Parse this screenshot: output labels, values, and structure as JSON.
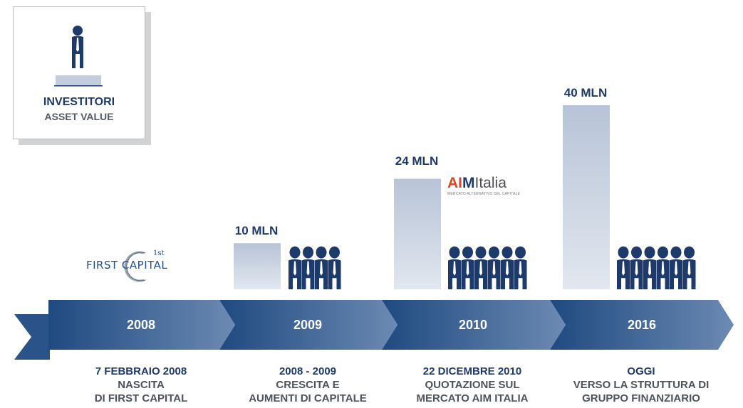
{
  "legend": {
    "title": "INVESTITORI",
    "subtitle": "ASSET VALUE",
    "icon": "investor-person-icon"
  },
  "chart_data": {
    "type": "bar",
    "categories": [
      "2008",
      "2009",
      "2010",
      "2016"
    ],
    "values": [
      0,
      10,
      24,
      40
    ],
    "value_labels": [
      "",
      "10 MLN",
      "24 MLN",
      "40 MLN"
    ],
    "investor_icons": [
      0,
      4,
      6,
      6
    ],
    "title": "",
    "xlabel": "",
    "ylabel": "",
    "ylim": [
      0,
      40
    ],
    "grid": false
  },
  "timeline": [
    {
      "year": "2008",
      "date": "7 FEBBRAIO 2008",
      "lines": [
        "NASCITA",
        "DI FIRST CAPITAL"
      ]
    },
    {
      "year": "2009",
      "date": "2008 - 2009",
      "lines": [
        "CRESCITA E",
        "AUMENTI DI CAPITALE"
      ]
    },
    {
      "year": "2010",
      "date": "22 DICEMBRE 2010",
      "lines": [
        "QUOTAZIONE SUL",
        "MERCATO AIM ITALIA"
      ]
    },
    {
      "year": "2016",
      "date": "OGGI",
      "lines": [
        "VERSO LA STRUTTURA DI",
        "GRUPPO FINANZIARIO"
      ]
    }
  ],
  "logos": {
    "first_capital": {
      "text": "FIRST CAPITAL",
      "superscript": "1st"
    },
    "aim": {
      "main_a": "A",
      "main_i": "I",
      "main_m": "M",
      "suffix": "Italia",
      "tagline": "MERCATO ALTERNATIVO DEL CAPITALE"
    }
  },
  "colors": {
    "navy": "#1d3a6b",
    "bar_top": "#b7c3d7",
    "bar_bottom": "#dfe5ee",
    "arrow_dark": "#1f4a80",
    "arrow_light": "#6c8ab3",
    "aim_red": "#d9472b"
  }
}
